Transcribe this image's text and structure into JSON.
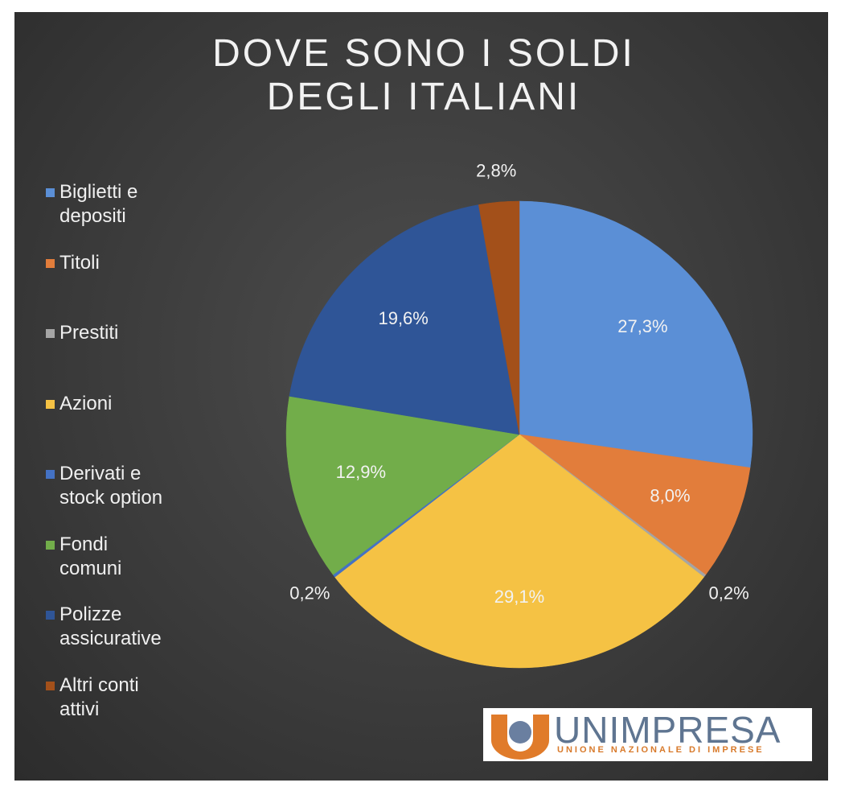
{
  "chart_data": {
    "type": "pie",
    "title": "DOVE SONO I SOLDI DEGLI ITALIANI",
    "categories": [
      "Biglietti e depositi",
      "Titoli",
      "Prestiti",
      "Azioni",
      "Derivati e stock option",
      "Fondi comuni",
      "Polizze assicurative",
      "Altri conti attivi"
    ],
    "values": [
      27.3,
      8.0,
      0.2,
      29.1,
      0.2,
      12.9,
      19.6,
      2.8
    ],
    "value_labels": [
      "27,3%",
      "8,0%",
      "0,2%",
      "29,1%",
      "0,2%",
      "12,9%",
      "19,6%",
      "2,8%"
    ],
    "colors": [
      "#5b8fd6",
      "#e27d3b",
      "#a5a5a5",
      "#f5c244",
      "#4472c4",
      "#72ad4a",
      "#2f5597",
      "#a3501a"
    ],
    "legend": "left"
  },
  "logo": {
    "name": "UNIMPRESA",
    "tagline": "UNIONE NAZIONALE DI IMPRESE"
  }
}
